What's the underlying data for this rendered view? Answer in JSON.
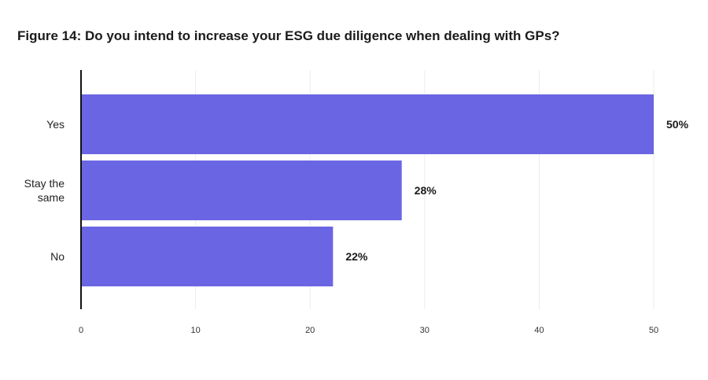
{
  "chart_data": {
    "type": "bar",
    "orientation": "horizontal",
    "title": "Figure 14: Do you intend to increase your ESG due diligence when dealing with GPs?",
    "categories": [
      "Yes",
      "Stay the same",
      "No"
    ],
    "category_lines": [
      [
        "Yes"
      ],
      [
        "Stay the",
        "same"
      ],
      [
        "No"
      ]
    ],
    "values": [
      50,
      28,
      22
    ],
    "value_labels": [
      "50%",
      "28%",
      "22%"
    ],
    "xlim": [
      0,
      50
    ],
    "xticks": [
      0,
      10,
      20,
      30,
      40,
      50
    ],
    "grid": true,
    "bar_color": "#6a66e3",
    "xlabel": "",
    "ylabel": ""
  }
}
